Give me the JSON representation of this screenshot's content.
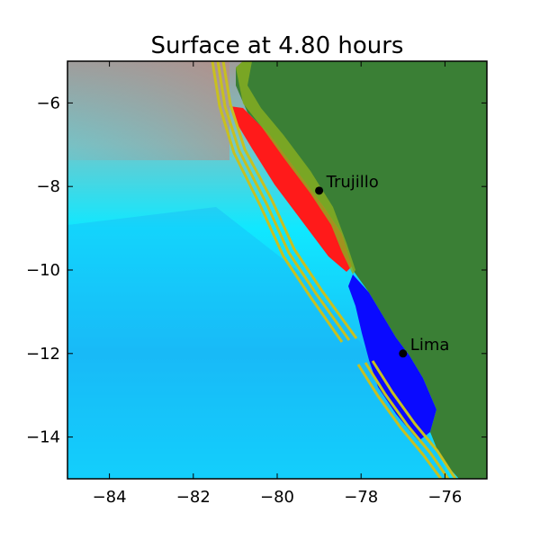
{
  "title": "Surface at 4.80 hours",
  "colors": {
    "land": "#3a7f35",
    "deep_ocean": "#08e8ff",
    "mid_ocean": "#20c8f0",
    "north_ocean": "#9aa0a0",
    "positive_wave": "#ff1a1a",
    "negative_wave": "#0a0aff",
    "gauge_lines": "#c8c020"
  },
  "chart_data": {
    "type": "heatmap",
    "xlim": [
      -85,
      -75
    ],
    "ylim": [
      -15,
      -5
    ],
    "x_ticks": [
      {
        "value": -84,
        "label": "−84"
      },
      {
        "value": -82,
        "label": "−82"
      },
      {
        "value": -80,
        "label": "−80"
      },
      {
        "value": -78,
        "label": "−78"
      },
      {
        "value": -76,
        "label": "−76"
      }
    ],
    "y_ticks": [
      {
        "value": -6,
        "label": "−6"
      },
      {
        "value": -8,
        "label": "−8"
      },
      {
        "value": -10,
        "label": "−10"
      },
      {
        "value": -12,
        "label": "−12"
      },
      {
        "value": -14,
        "label": "−14"
      }
    ],
    "cities": [
      {
        "name": "Trujillo",
        "lon": -79.0,
        "lat": -8.1
      },
      {
        "name": "Lima",
        "lon": -77.0,
        "lat": -12.0
      }
    ]
  }
}
